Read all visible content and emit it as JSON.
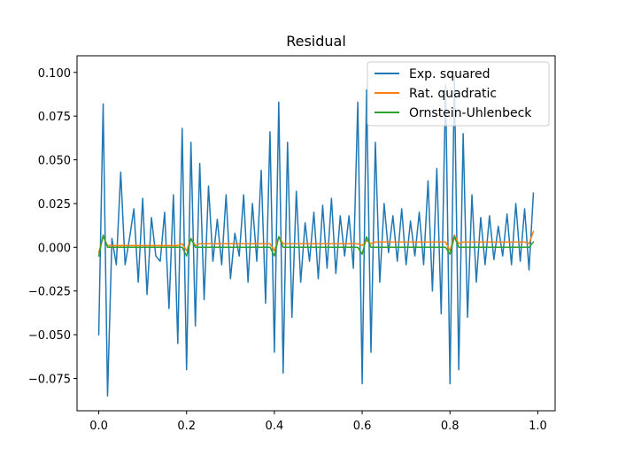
{
  "chart_data": {
    "type": "line",
    "title": "Residual",
    "xlabel": "",
    "ylabel": "",
    "xlim": [
      -0.0495,
      1.0395
    ],
    "ylim": [
      -0.0935,
      0.1095
    ],
    "xticks": [
      0.0,
      0.2,
      0.4,
      0.6,
      0.8,
      1.0
    ],
    "xtick_labels": [
      "0.0",
      "0.2",
      "0.4",
      "0.6",
      "0.8",
      "1.0"
    ],
    "yticks": [
      -0.075,
      -0.05,
      -0.025,
      0.0,
      0.025,
      0.05,
      0.075,
      0.1
    ],
    "ytick_labels": [
      "−0.075",
      "−0.050",
      "−0.025",
      "0.000",
      "0.025",
      "0.050",
      "0.075",
      "0.100"
    ],
    "grid": false,
    "legend_position": "top-right",
    "x": [
      0.0,
      0.01,
      0.02,
      0.03,
      0.04,
      0.05,
      0.06,
      0.07,
      0.08,
      0.09,
      0.1,
      0.11,
      0.12,
      0.13,
      0.14,
      0.15,
      0.16,
      0.17,
      0.18,
      0.19,
      0.2,
      0.21,
      0.22,
      0.23,
      0.24,
      0.25,
      0.26,
      0.27,
      0.28,
      0.29,
      0.3,
      0.31,
      0.32,
      0.33,
      0.34,
      0.35,
      0.36,
      0.37,
      0.38,
      0.39,
      0.4,
      0.41,
      0.42,
      0.43,
      0.44,
      0.45,
      0.46,
      0.47,
      0.48,
      0.49,
      0.5,
      0.51,
      0.52,
      0.53,
      0.54,
      0.55,
      0.56,
      0.57,
      0.58,
      0.59,
      0.6,
      0.61,
      0.62,
      0.63,
      0.64,
      0.65,
      0.66,
      0.67,
      0.68,
      0.69,
      0.7,
      0.71,
      0.72,
      0.73,
      0.74,
      0.75,
      0.76,
      0.77,
      0.78,
      0.79,
      0.8,
      0.81,
      0.82,
      0.83,
      0.84,
      0.85,
      0.86,
      0.87,
      0.88,
      0.89,
      0.9,
      0.91,
      0.92,
      0.93,
      0.94,
      0.95,
      0.96,
      0.97,
      0.98,
      0.99
    ],
    "series": [
      {
        "name": "Exp. squared",
        "color": "#1f77b4",
        "values": [
          -0.05,
          0.082,
          -0.085,
          0.005,
          -0.01,
          0.043,
          -0.01,
          0.005,
          0.022,
          -0.02,
          0.028,
          -0.027,
          0.017,
          -0.005,
          -0.008,
          0.02,
          -0.035,
          0.03,
          -0.055,
          0.068,
          -0.07,
          0.06,
          -0.045,
          0.048,
          -0.03,
          0.035,
          -0.008,
          0.016,
          -0.01,
          0.03,
          -0.018,
          0.008,
          -0.005,
          0.03,
          -0.02,
          0.025,
          -0.008,
          0.044,
          -0.032,
          0.066,
          -0.06,
          0.083,
          -0.072,
          0.06,
          -0.04,
          0.032,
          -0.02,
          0.014,
          -0.008,
          0.02,
          -0.018,
          0.024,
          -0.012,
          0.028,
          -0.015,
          0.018,
          -0.005,
          0.018,
          -0.012,
          0.083,
          -0.078,
          0.09,
          -0.06,
          0.06,
          -0.02,
          0.025,
          -0.003,
          0.018,
          -0.008,
          0.022,
          -0.01,
          0.015,
          -0.005,
          0.02,
          -0.01,
          0.038,
          -0.025,
          0.045,
          -0.038,
          0.093,
          -0.078,
          0.098,
          -0.07,
          0.065,
          -0.04,
          0.03,
          -0.02,
          0.017,
          -0.01,
          0.018,
          -0.007,
          0.012,
          -0.005,
          0.019,
          -0.01,
          0.025,
          -0.008,
          0.022,
          -0.013,
          0.031
        ]
      },
      {
        "name": "Rat. quadratic",
        "color": "#ff7f0e",
        "values": [
          -0.003,
          0.006,
          0.001,
          0.001,
          0.001,
          0.001,
          0.001,
          0.001,
          0.001,
          0.001,
          0.001,
          0.001,
          0.001,
          0.001,
          0.001,
          0.001,
          0.001,
          0.001,
          0.001,
          0.002,
          -0.002,
          0.005,
          0.001,
          0.002,
          0.002,
          0.002,
          0.002,
          0.002,
          0.002,
          0.002,
          0.002,
          0.002,
          0.002,
          0.002,
          0.002,
          0.002,
          0.002,
          0.002,
          0.002,
          0.002,
          -0.002,
          0.006,
          0.002,
          0.002,
          0.002,
          0.002,
          0.002,
          0.002,
          0.002,
          0.002,
          0.002,
          0.002,
          0.002,
          0.002,
          0.002,
          0.002,
          0.002,
          0.002,
          0.002,
          0.002,
          0.001,
          0.004,
          0.002,
          0.003,
          0.003,
          0.003,
          0.003,
          0.003,
          0.003,
          0.003,
          0.003,
          0.003,
          0.003,
          0.003,
          0.003,
          0.003,
          0.003,
          0.003,
          0.003,
          0.003,
          -0.002,
          0.007,
          0.002,
          0.003,
          0.003,
          0.003,
          0.003,
          0.003,
          0.003,
          0.003,
          0.003,
          0.003,
          0.003,
          0.003,
          0.003,
          0.003,
          0.003,
          0.003,
          0.002,
          0.009
        ]
      },
      {
        "name": "Ornstein-Uhlenbeck",
        "color": "#2ca02c",
        "values": [
          -0.005,
          0.007,
          0.0,
          0.0,
          0.0,
          0.0,
          0.0,
          0.0,
          0.0,
          0.0,
          0.0,
          0.0,
          0.0,
          0.0,
          0.0,
          0.0,
          0.0,
          0.0,
          0.0,
          0.0,
          -0.005,
          0.005,
          0.0,
          0.0,
          0.0,
          0.0,
          0.0,
          0.0,
          0.0,
          0.0,
          0.0,
          0.0,
          0.0,
          0.0,
          0.0,
          0.0,
          0.0,
          0.0,
          0.0,
          0.0,
          -0.005,
          0.006,
          0.0,
          0.0,
          0.0,
          0.0,
          0.0,
          0.0,
          0.0,
          0.0,
          0.0,
          0.0,
          0.0,
          0.0,
          0.0,
          0.0,
          0.0,
          0.0,
          0.0,
          0.0,
          -0.004,
          0.006,
          0.0,
          0.0,
          0.0,
          0.0,
          0.0,
          0.0,
          0.0,
          0.0,
          0.0,
          0.0,
          0.0,
          0.0,
          0.0,
          0.0,
          0.0,
          0.0,
          0.0,
          0.0,
          -0.004,
          0.006,
          0.0,
          0.0,
          0.0,
          0.0,
          0.0,
          0.0,
          0.0,
          0.0,
          0.0,
          0.0,
          0.0,
          0.0,
          0.0,
          0.0,
          0.0,
          0.0,
          0.0,
          0.003
        ]
      }
    ]
  }
}
